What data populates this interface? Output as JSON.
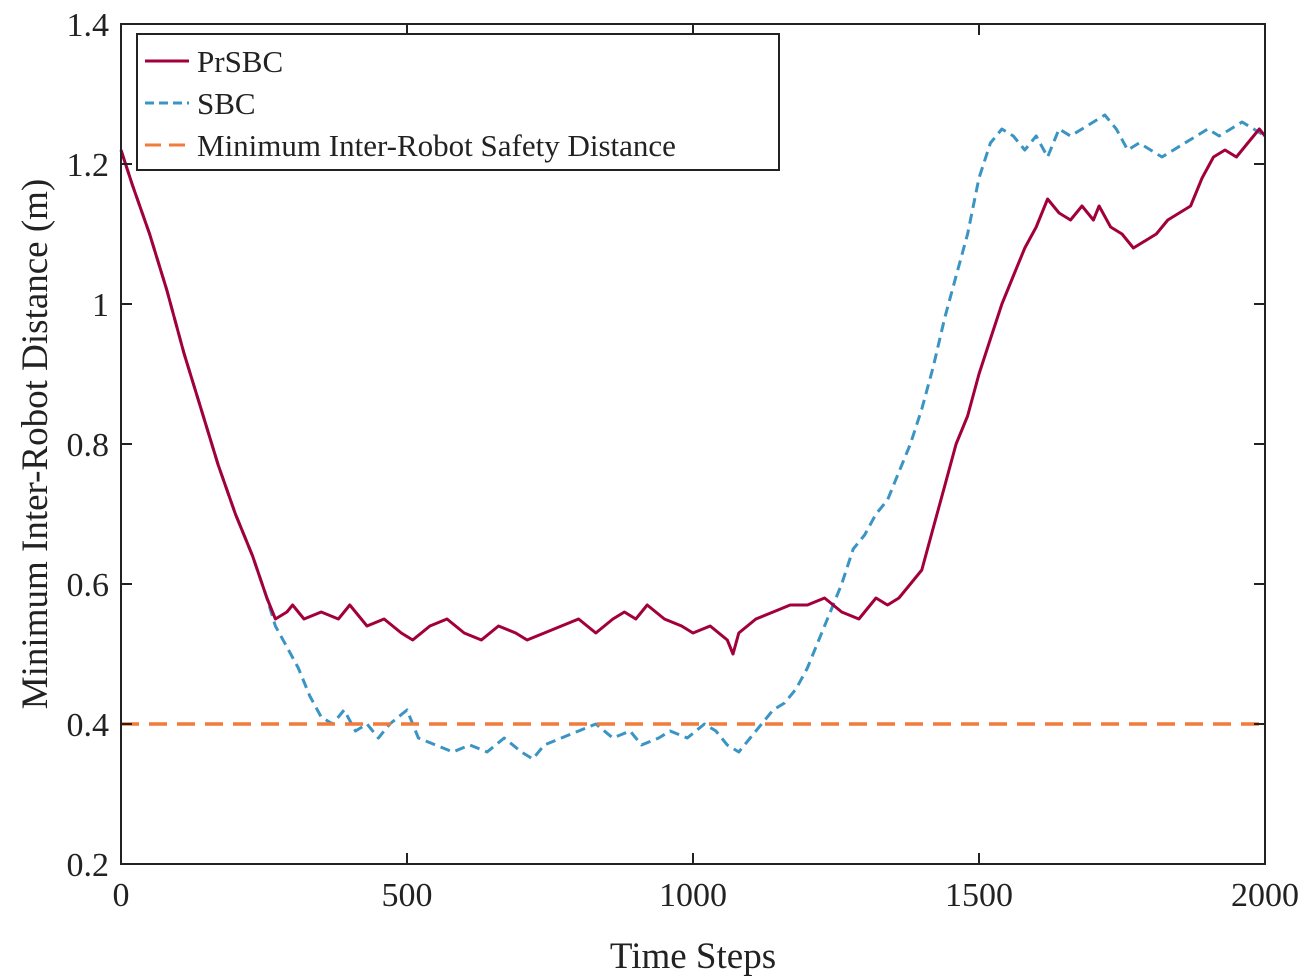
{
  "chart_data": {
    "type": "line",
    "title": "",
    "xlabel": "Time Steps",
    "ylabel": "Minimum Inter-Robot Distance (m)",
    "xlim": [
      0,
      2000
    ],
    "ylim": [
      0.2,
      1.4
    ],
    "xticks": [
      0,
      500,
      1000,
      1500,
      2000
    ],
    "xtick_labels": [
      "0",
      "500",
      "1000",
      "1500",
      "2000"
    ],
    "yticks": [
      0.2,
      0.4,
      0.6,
      0.8,
      1.0,
      1.2,
      1.4
    ],
    "ytick_labels": [
      "0.2",
      "0.4",
      "0.6",
      "0.8",
      "1",
      "1.2",
      "1.4"
    ],
    "grid": false,
    "legend_position": "top-left",
    "series": [
      {
        "name": "PrSBC",
        "color": "#A2003A",
        "style": "solid",
        "x": [
          0,
          20,
          50,
          80,
          110,
          140,
          170,
          200,
          230,
          255,
          270,
          290,
          300,
          320,
          350,
          380,
          400,
          430,
          460,
          490,
          510,
          540,
          570,
          600,
          630,
          660,
          690,
          710,
          740,
          770,
          800,
          830,
          860,
          880,
          900,
          920,
          950,
          980,
          1000,
          1030,
          1060,
          1070,
          1080,
          1110,
          1140,
          1170,
          1200,
          1230,
          1260,
          1290,
          1300,
          1320,
          1340,
          1360,
          1380,
          1400,
          1420,
          1440,
          1460,
          1480,
          1500,
          1520,
          1540,
          1560,
          1580,
          1600,
          1620,
          1640,
          1660,
          1680,
          1700,
          1710,
          1730,
          1750,
          1770,
          1790,
          1810,
          1830,
          1850,
          1870,
          1890,
          1910,
          1930,
          1950,
          1970,
          1990,
          2000
        ],
        "values": [
          1.22,
          1.17,
          1.1,
          1.02,
          0.93,
          0.85,
          0.77,
          0.7,
          0.64,
          0.58,
          0.55,
          0.56,
          0.57,
          0.55,
          0.56,
          0.55,
          0.57,
          0.54,
          0.55,
          0.53,
          0.52,
          0.54,
          0.55,
          0.53,
          0.52,
          0.54,
          0.53,
          0.52,
          0.53,
          0.54,
          0.55,
          0.53,
          0.55,
          0.56,
          0.55,
          0.57,
          0.55,
          0.54,
          0.53,
          0.54,
          0.52,
          0.5,
          0.53,
          0.55,
          0.56,
          0.57,
          0.57,
          0.58,
          0.56,
          0.55,
          0.56,
          0.58,
          0.57,
          0.58,
          0.6,
          0.62,
          0.68,
          0.74,
          0.8,
          0.84,
          0.9,
          0.95,
          1.0,
          1.04,
          1.08,
          1.11,
          1.15,
          1.13,
          1.12,
          1.14,
          1.12,
          1.14,
          1.11,
          1.1,
          1.08,
          1.09,
          1.1,
          1.12,
          1.13,
          1.14,
          1.18,
          1.21,
          1.22,
          1.21,
          1.23,
          1.25,
          1.24
        ]
      },
      {
        "name": "SBC",
        "color": "#3A94C4",
        "style": "dashed",
        "x": [
          0,
          20,
          50,
          80,
          110,
          140,
          170,
          200,
          230,
          255,
          270,
          290,
          310,
          330,
          350,
          370,
          390,
          410,
          430,
          450,
          470,
          500,
          520,
          550,
          580,
          610,
          640,
          670,
          700,
          720,
          740,
          770,
          800,
          830,
          860,
          890,
          910,
          940,
          960,
          990,
          1020,
          1040,
          1060,
          1080,
          1100,
          1120,
          1140,
          1160,
          1180,
          1200,
          1220,
          1240,
          1260,
          1280,
          1300,
          1320,
          1340,
          1360,
          1380,
          1400,
          1420,
          1440,
          1460,
          1480,
          1500,
          1520,
          1540,
          1560,
          1580,
          1600,
          1620,
          1640,
          1660,
          1680,
          1700,
          1720,
          1740,
          1760,
          1780,
          1800,
          1820,
          1840,
          1860,
          1880,
          1900,
          1920,
          1940,
          1960,
          1980,
          2000
        ],
        "values": [
          1.22,
          1.17,
          1.1,
          1.02,
          0.93,
          0.85,
          0.77,
          0.7,
          0.64,
          0.58,
          0.54,
          0.51,
          0.48,
          0.44,
          0.41,
          0.4,
          0.42,
          0.39,
          0.4,
          0.38,
          0.4,
          0.42,
          0.38,
          0.37,
          0.36,
          0.37,
          0.36,
          0.38,
          0.36,
          0.35,
          0.37,
          0.38,
          0.39,
          0.4,
          0.38,
          0.39,
          0.37,
          0.38,
          0.39,
          0.38,
          0.4,
          0.39,
          0.37,
          0.36,
          0.38,
          0.4,
          0.42,
          0.43,
          0.45,
          0.48,
          0.52,
          0.56,
          0.6,
          0.65,
          0.67,
          0.7,
          0.72,
          0.76,
          0.8,
          0.85,
          0.91,
          0.98,
          1.04,
          1.1,
          1.18,
          1.23,
          1.25,
          1.24,
          1.22,
          1.24,
          1.21,
          1.25,
          1.24,
          1.25,
          1.26,
          1.27,
          1.25,
          1.22,
          1.23,
          1.22,
          1.21,
          1.22,
          1.23,
          1.24,
          1.25,
          1.24,
          1.25,
          1.26,
          1.25,
          1.24
        ]
      },
      {
        "name": "Minimum Inter-Robot Safety Distance",
        "color": "#F27A3A",
        "style": "dashed",
        "x": [
          0,
          2000
        ],
        "values": [
          0.4,
          0.4
        ]
      }
    ]
  }
}
